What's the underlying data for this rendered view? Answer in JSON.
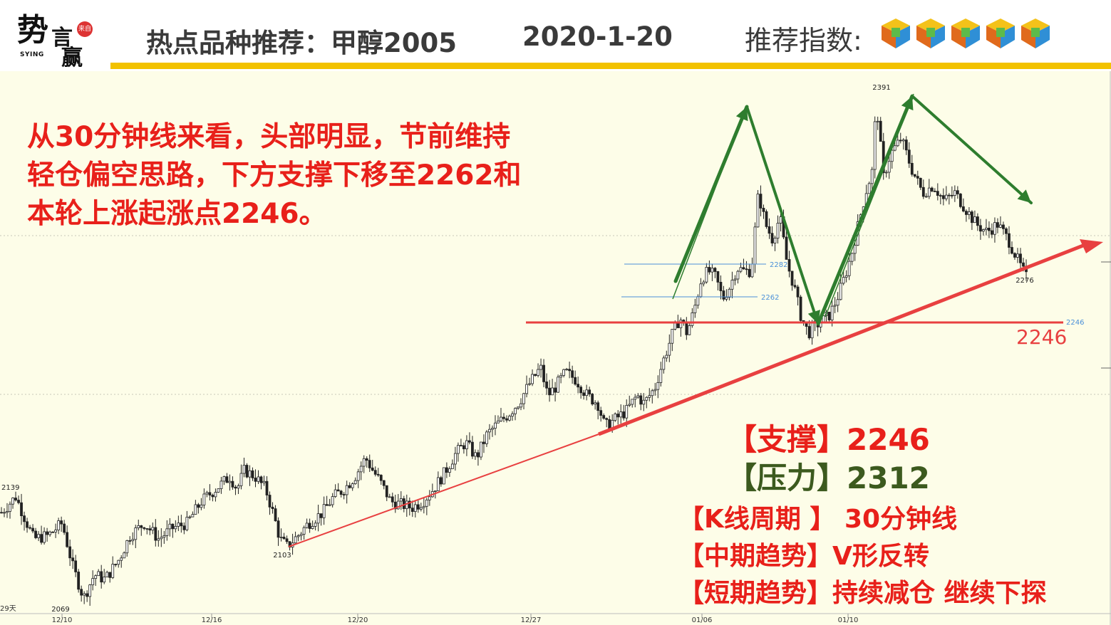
{
  "header": {
    "logo_big": "势",
    "logo_mid": "言",
    "logo_bot": "赢",
    "logo_seal": "来自",
    "logo_en": "SYING",
    "title": "热点品种推荐：甲醇2005",
    "date": "2020-1-20",
    "rec_label": "推荐指数:",
    "rec_stars": 5,
    "colors": {
      "title": "#3a3a3a",
      "gold_bar": "#f2c200"
    }
  },
  "note": {
    "lines": [
      "从30分钟线来看，头部明显，节前维持",
      "轻仓偏空思路，下方支撑下移至2262和",
      "本轮上涨起涨点2246。"
    ],
    "color": "#e8201a"
  },
  "info": {
    "support_label": "【支撑】",
    "support_value": "2246",
    "pressure_label": "【压力】",
    "pressure_value": "2312",
    "kline_label": "【K线周期 】",
    "kline_value": "30分钟线",
    "mid_label": "【中期趋势】",
    "mid_value": "V形反转",
    "short_label": "【短期趋势】",
    "short_value": "持续减仓 继续下探",
    "colors": {
      "red": "#e8201a",
      "green": "#3c5a1e"
    }
  },
  "chart_data": {
    "type": "candlestick",
    "x_tick_labels": [
      "12/10",
      "12/16",
      "12/20",
      "12/27",
      "01/06",
      "01/10"
    ],
    "y_range": [
      2060,
      2400
    ],
    "left_label": "29天",
    "lows_highs": {
      "low_2069": "2069",
      "low_2103": "2103",
      "start_2139": "2139",
      "high_2391": "2391",
      "last_2276": "2276"
    },
    "levels": [
      {
        "name": "2282",
        "value": 2282,
        "color": "#4a90d9"
      },
      {
        "name": "2262",
        "value": 2262,
        "color": "#4a90d9"
      },
      {
        "name": "2246",
        "value": 2246,
        "color": "#e84040",
        "big_label": "2246"
      }
    ],
    "trend_line": {
      "from_value": 2103,
      "to_value": 2320,
      "color": "#e84040"
    },
    "zigzag_color": "#2e7d2e",
    "background": "#fdfde8",
    "price_path": [
      [
        0,
        2125
      ],
      [
        8,
        2135
      ],
      [
        18,
        2108
      ],
      [
        26,
        2110
      ],
      [
        34,
        2118
      ],
      [
        40,
        2090
      ],
      [
        46,
        2070
      ],
      [
        52,
        2085
      ],
      [
        58,
        2082
      ],
      [
        66,
        2095
      ],
      [
        72,
        2110
      ],
      [
        80,
        2118
      ],
      [
        88,
        2108
      ],
      [
        96,
        2115
      ],
      [
        104,
        2118
      ],
      [
        112,
        2132
      ],
      [
        120,
        2140
      ],
      [
        128,
        2148
      ],
      [
        132,
        2140
      ],
      [
        136,
        2152
      ],
      [
        142,
        2148
      ],
      [
        148,
        2140
      ],
      [
        152,
        2125
      ],
      [
        156,
        2108
      ],
      [
        160,
        2103
      ],
      [
        166,
        2110
      ],
      [
        172,
        2118
      ],
      [
        180,
        2125
      ],
      [
        186,
        2135
      ],
      [
        192,
        2140
      ],
      [
        198,
        2148
      ],
      [
        204,
        2160
      ],
      [
        208,
        2152
      ],
      [
        212,
        2145
      ],
      [
        218,
        2132
      ],
      [
        224,
        2130
      ],
      [
        230,
        2128
      ],
      [
        236,
        2132
      ],
      [
        242,
        2140
      ],
      [
        248,
        2150
      ],
      [
        254,
        2162
      ],
      [
        260,
        2170
      ],
      [
        266,
        2160
      ],
      [
        272,
        2175
      ],
      [
        278,
        2182
      ],
      [
        284,
        2188
      ],
      [
        290,
        2196
      ],
      [
        296,
        2208
      ],
      [
        302,
        2218
      ],
      [
        306,
        2200
      ],
      [
        310,
        2205
      ],
      [
        316,
        2215
      ],
      [
        322,
        2210
      ],
      [
        328,
        2200
      ],
      [
        334,
        2195
      ],
      [
        338,
        2180
      ],
      [
        344,
        2185
      ],
      [
        350,
        2190
      ],
      [
        356,
        2200
      ],
      [
        360,
        2195
      ],
      [
        366,
        2205
      ],
      [
        370,
        2220
      ],
      [
        376,
        2240
      ],
      [
        380,
        2250
      ],
      [
        384,
        2240
      ],
      [
        388,
        2255
      ],
      [
        392,
        2275
      ],
      [
        396,
        2280
      ],
      [
        400,
        2276
      ],
      [
        404,
        2262
      ],
      [
        408,
        2270
      ],
      [
        412,
        2282
      ],
      [
        416,
        2280
      ],
      [
        420,
        2280
      ],
      [
        424,
        2330
      ],
      [
        428,
        2310
      ],
      [
        432,
        2300
      ],
      [
        436,
        2315
      ],
      [
        440,
        2285
      ],
      [
        444,
        2270
      ],
      [
        448,
        2250
      ],
      [
        452,
        2240
      ],
      [
        456,
        2245
      ],
      [
        460,
        2248
      ],
      [
        464,
        2252
      ],
      [
        468,
        2262
      ],
      [
        472,
        2275
      ],
      [
        476,
        2290
      ],
      [
        480,
        2310
      ],
      [
        484,
        2330
      ],
      [
        488,
        2345
      ],
      [
        490,
        2390
      ],
      [
        494,
        2340
      ],
      [
        498,
        2355
      ],
      [
        504,
        2365
      ],
      [
        510,
        2345
      ],
      [
        516,
        2330
      ],
      [
        522,
        2335
      ],
      [
        528,
        2325
      ],
      [
        534,
        2330
      ],
      [
        540,
        2320
      ],
      [
        546,
        2310
      ],
      [
        552,
        2305
      ],
      [
        558,
        2310
      ],
      [
        564,
        2300
      ],
      [
        570,
        2285
      ],
      [
        574,
        2276
      ]
    ]
  }
}
